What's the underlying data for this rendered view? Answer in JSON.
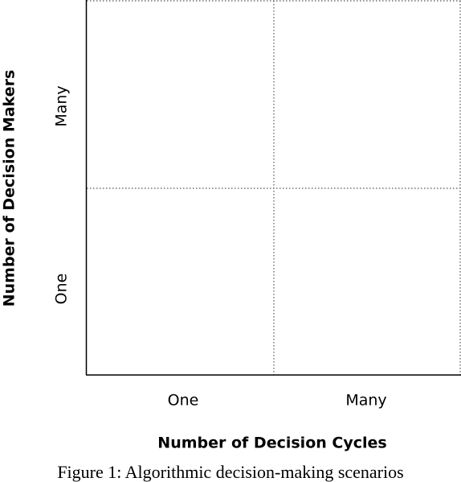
{
  "diagram": {
    "x_axis": {
      "title": "Number of Decision Cycles",
      "ticks": [
        "One",
        "Many"
      ]
    },
    "y_axis": {
      "title": "Number of Decision Makers",
      "ticks": [
        "One",
        "Many"
      ]
    },
    "caption": "Figure 1: Algorithmic decision-making scenarios"
  }
}
